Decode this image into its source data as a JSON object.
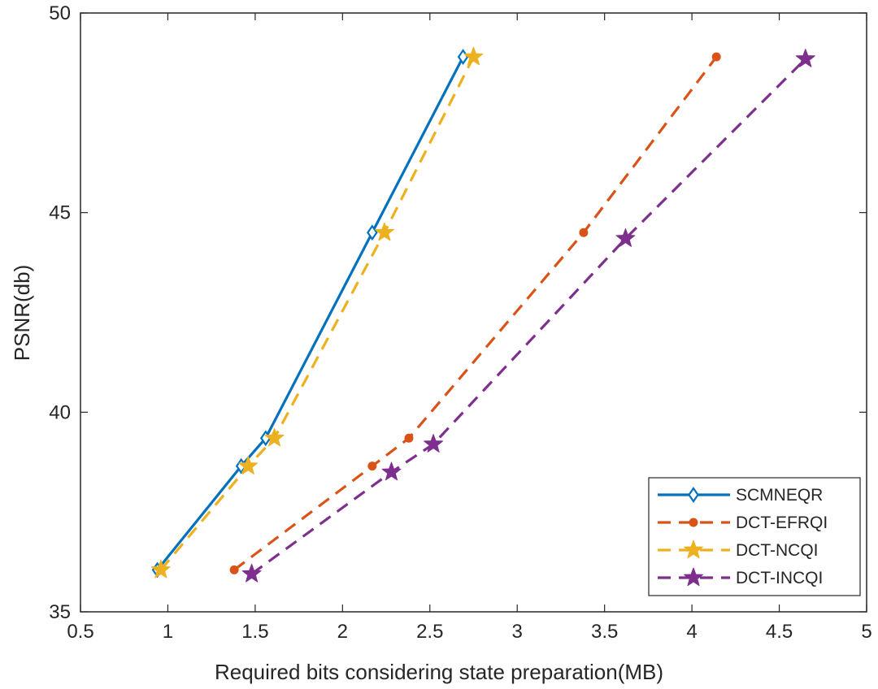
{
  "chart_data": {
    "type": "line",
    "xlabel": "Required bits considering state preparation(MB)",
    "ylabel": "PSNR(db)",
    "xlim": [
      0.5,
      5
    ],
    "ylim": [
      35,
      50
    ],
    "x_ticks": [
      "0.5",
      "1",
      "1.5",
      "2",
      "2.5",
      "3",
      "3.5",
      "4",
      "4.5",
      "5"
    ],
    "y_ticks": [
      "35",
      "40",
      "45",
      "50"
    ],
    "grid": false,
    "legend_position": "bottom-right",
    "series": [
      {
        "name": "SCMNEQR",
        "color": "#0072BD",
        "line_style": "solid",
        "marker": "diamond",
        "x": [
          0.94,
          1.42,
          1.56,
          2.17,
          2.69
        ],
        "y": [
          36.05,
          38.65,
          39.35,
          44.5,
          48.9
        ]
      },
      {
        "name": "DCT-EFRQI",
        "color": "#D95319",
        "line_style": "dashed",
        "marker": "circle",
        "x": [
          1.38,
          2.17,
          2.38,
          3.38,
          4.14
        ],
        "y": [
          36.05,
          38.65,
          39.35,
          44.5,
          48.9
        ]
      },
      {
        "name": "DCT-NCQI",
        "color": "#EDB120",
        "line_style": "dashed",
        "marker": "star",
        "x": [
          0.96,
          1.46,
          1.61,
          2.24,
          2.75
        ],
        "y": [
          36.05,
          38.65,
          39.35,
          44.5,
          48.9
        ]
      },
      {
        "name": "DCT-INCQI",
        "color": "#7E2F8E",
        "line_style": "dashed",
        "marker": "star",
        "x": [
          1.48,
          2.28,
          2.52,
          3.62,
          4.65
        ],
        "y": [
          35.95,
          38.5,
          39.2,
          44.35,
          48.85
        ]
      }
    ]
  }
}
